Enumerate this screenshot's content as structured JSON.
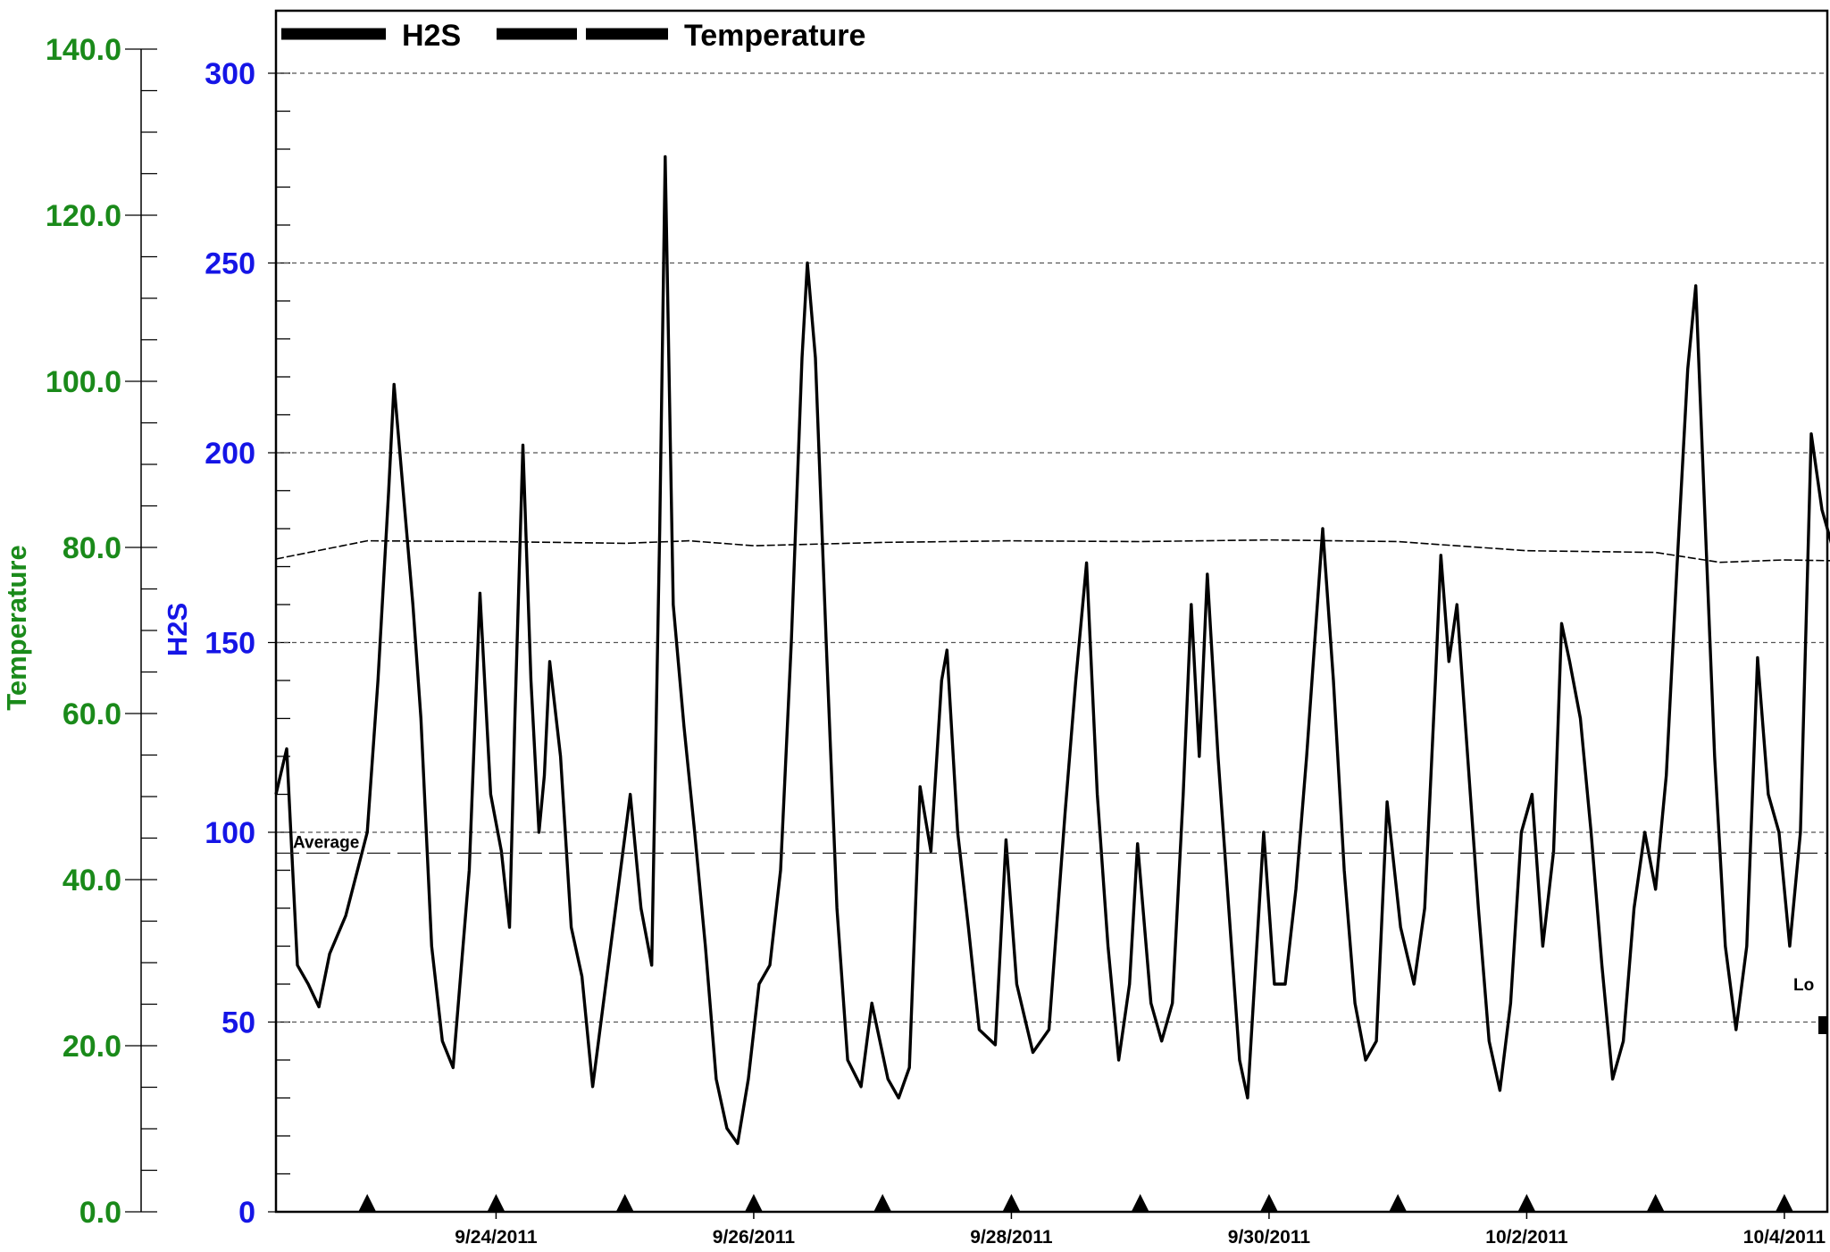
{
  "chart_data": {
    "type": "line",
    "legend": {
      "placement": "top-left",
      "items": [
        "H2S",
        "Temperature"
      ]
    },
    "y_left_outer": {
      "label": "Temperature",
      "ylim": [
        0,
        140
      ],
      "ticks": [
        "0.0",
        "20.0",
        "40.0",
        "60.0",
        "80.0",
        "100.0",
        "120.0",
        "140.0"
      ],
      "tick_values": [
        0,
        20,
        40,
        60,
        80,
        100,
        120,
        140
      ],
      "color": "#1a8a1a"
    },
    "y_left_inner": {
      "label": "H2S",
      "ylim": [
        0,
        300
      ],
      "ticks": [
        "0",
        "50",
        "100",
        "150",
        "200",
        "250",
        "300"
      ],
      "tick_values": [
        0,
        50,
        100,
        150,
        200,
        250,
        300
      ],
      "color": "#1515e6"
    },
    "x_axis": {
      "type": "date",
      "range": [
        "2011-09-22 07:00",
        "2011-10-04 08:00"
      ],
      "tick_labels": [
        "9/24/2011",
        "9/26/2011",
        "9/28/2011",
        "9/30/2011",
        "10/2/2011",
        "10/4/2011"
      ],
      "tick_dates": [
        "2011-09-24",
        "2011-09-26",
        "2011-09-28",
        "2011-09-30",
        "2011-10-02",
        "2011-10-04"
      ],
      "daily_markers": [
        "2011-09-23",
        "2011-09-24",
        "2011-09-25",
        "2011-09-26",
        "2011-09-27",
        "2011-09-28",
        "2011-09-29",
        "2011-09-30",
        "2011-10-01",
        "2011-10-02",
        "2011-10-03",
        "2011-10-04"
      ]
    },
    "grid": {
      "horizontal": true,
      "style": "dashed",
      "values": [
        50,
        100,
        150,
        200,
        250,
        300
      ]
    },
    "annotations": [
      {
        "text": "Average",
        "h2s_value": 94.5
      },
      {
        "text": "Lo",
        "h2s_value": 60
      }
    ],
    "series": [
      {
        "name": "H2S",
        "axis": "H2S",
        "color": "#000000",
        "points": [
          [
            "2011-09-22 07:00",
            110
          ],
          [
            "2011-09-22 09:00",
            122
          ],
          [
            "2011-09-22 11:00",
            65
          ],
          [
            "2011-09-22 13:00",
            60
          ],
          [
            "2011-09-22 15:00",
            54
          ],
          [
            "2011-09-22 17:00",
            68
          ],
          [
            "2011-09-22 20:00",
            78
          ],
          [
            "2011-09-23 00:00",
            100
          ],
          [
            "2011-09-23 02:00",
            140
          ],
          [
            "2011-09-23 04:00",
            190
          ],
          [
            "2011-09-23 05:00",
            218
          ],
          [
            "2011-09-23 07:00",
            185
          ],
          [
            "2011-09-23 08:30",
            160
          ],
          [
            "2011-09-23 10:00",
            130
          ],
          [
            "2011-09-23 12:00",
            70
          ],
          [
            "2011-09-23 14:00",
            45
          ],
          [
            "2011-09-23 16:00",
            38
          ],
          [
            "2011-09-23 19:00",
            90
          ],
          [
            "2011-09-23 21:00",
            163
          ],
          [
            "2011-09-23 23:00",
            110
          ],
          [
            "2011-09-24 01:00",
            95
          ],
          [
            "2011-09-24 02:30",
            75
          ],
          [
            "2011-09-24 03:30",
            130
          ],
          [
            "2011-09-24 05:00",
            202
          ],
          [
            "2011-09-24 06:30",
            140
          ],
          [
            "2011-09-24 08:00",
            100
          ],
          [
            "2011-09-24 09:00",
            115
          ],
          [
            "2011-09-24 10:00",
            145
          ],
          [
            "2011-09-24 12:00",
            120
          ],
          [
            "2011-09-24 14:00",
            75
          ],
          [
            "2011-09-24 16:00",
            62
          ],
          [
            "2011-09-24 18:00",
            33
          ],
          [
            "2011-09-24 20:00",
            55
          ],
          [
            "2011-09-24 23:00",
            88
          ],
          [
            "2011-09-25 01:00",
            110
          ],
          [
            "2011-09-25 03:00",
            80
          ],
          [
            "2011-09-25 05:00",
            65
          ],
          [
            "2011-09-25 06:30",
            180
          ],
          [
            "2011-09-25 07:30",
            278
          ],
          [
            "2011-09-25 09:00",
            160
          ],
          [
            "2011-09-25 11:00",
            128
          ],
          [
            "2011-09-25 13:00",
            100
          ],
          [
            "2011-09-25 15:00",
            70
          ],
          [
            "2011-09-25 17:00",
            35
          ],
          [
            "2011-09-25 19:00",
            22
          ],
          [
            "2011-09-25 21:00",
            18
          ],
          [
            "2011-09-25 23:00",
            35
          ],
          [
            "2011-09-26 01:00",
            60
          ],
          [
            "2011-09-26 03:00",
            65
          ],
          [
            "2011-09-26 05:00",
            90
          ],
          [
            "2011-09-26 07:00",
            150
          ],
          [
            "2011-09-26 09:00",
            225
          ],
          [
            "2011-09-26 10:00",
            250
          ],
          [
            "2011-09-26 11:30",
            225
          ],
          [
            "2011-09-26 13:30",
            150
          ],
          [
            "2011-09-26 15:30",
            80
          ],
          [
            "2011-09-26 17:30",
            40
          ],
          [
            "2011-09-26 20:00",
            33
          ],
          [
            "2011-09-26 22:00",
            55
          ],
          [
            "2011-09-27 01:00",
            35
          ],
          [
            "2011-09-27 03:00",
            30
          ],
          [
            "2011-09-27 05:00",
            38
          ],
          [
            "2011-09-27 07:00",
            112
          ],
          [
            "2011-09-27 09:00",
            95
          ],
          [
            "2011-09-27 11:00",
            140
          ],
          [
            "2011-09-27 12:00",
            148
          ],
          [
            "2011-09-27 14:00",
            100
          ],
          [
            "2011-09-27 16:00",
            75
          ],
          [
            "2011-09-27 18:00",
            48
          ],
          [
            "2011-09-27 21:00",
            44
          ],
          [
            "2011-09-27 23:00",
            98
          ],
          [
            "2011-09-28 01:00",
            60
          ],
          [
            "2011-09-28 04:00",
            42
          ],
          [
            "2011-09-28 07:00",
            48
          ],
          [
            "2011-09-28 10:00",
            105
          ],
          [
            "2011-09-28 12:00",
            140
          ],
          [
            "2011-09-28 14:00",
            171
          ],
          [
            "2011-09-28 16:00",
            110
          ],
          [
            "2011-09-28 18:00",
            70
          ],
          [
            "2011-09-28 20:00",
            40
          ],
          [
            "2011-09-28 22:00",
            60
          ],
          [
            "2011-09-28 23:30",
            97
          ],
          [
            "2011-09-29 02:00",
            55
          ],
          [
            "2011-09-29 04:00",
            45
          ],
          [
            "2011-09-29 06:00",
            55
          ],
          [
            "2011-09-29 08:00",
            110
          ],
          [
            "2011-09-29 09:30",
            160
          ],
          [
            "2011-09-29 11:00",
            120
          ],
          [
            "2011-09-29 12:30",
            168
          ],
          [
            "2011-09-29 14:30",
            120
          ],
          [
            "2011-09-29 16:30",
            80
          ],
          [
            "2011-09-29 18:30",
            40
          ],
          [
            "2011-09-29 20:00",
            30
          ],
          [
            "2011-09-29 21:30",
            65
          ],
          [
            "2011-09-29 23:00",
            100
          ],
          [
            "2011-09-30 01:00",
            60
          ],
          [
            "2011-09-30 03:00",
            60
          ],
          [
            "2011-09-30 05:00",
            85
          ],
          [
            "2011-09-30 07:00",
            120
          ],
          [
            "2011-09-30 08:30",
            150
          ],
          [
            "2011-09-30 10:00",
            180
          ],
          [
            "2011-09-30 12:00",
            140
          ],
          [
            "2011-09-30 14:00",
            90
          ],
          [
            "2011-09-30 16:00",
            55
          ],
          [
            "2011-09-30 18:00",
            40
          ],
          [
            "2011-09-30 20:00",
            45
          ],
          [
            "2011-09-30 22:00",
            108
          ],
          [
            "2011-10-01 00:30",
            75
          ],
          [
            "2011-10-01 03:00",
            60
          ],
          [
            "2011-10-01 05:00",
            80
          ],
          [
            "2011-10-01 07:00",
            140
          ],
          [
            "2011-10-01 08:00",
            173
          ],
          [
            "2011-10-01 09:30",
            145
          ],
          [
            "2011-10-01 11:00",
            160
          ],
          [
            "2011-10-01 13:00",
            120
          ],
          [
            "2011-10-01 15:00",
            80
          ],
          [
            "2011-10-01 17:00",
            45
          ],
          [
            "2011-10-01 19:00",
            32
          ],
          [
            "2011-10-01 21:00",
            55
          ],
          [
            "2011-10-01 23:00",
            100
          ],
          [
            "2011-10-02 01:00",
            110
          ],
          [
            "2011-10-02 03:00",
            70
          ],
          [
            "2011-10-02 05:00",
            95
          ],
          [
            "2011-10-02 06:30",
            155
          ],
          [
            "2011-10-02 08:00",
            145
          ],
          [
            "2011-10-02 10:00",
            130
          ],
          [
            "2011-10-02 12:00",
            100
          ],
          [
            "2011-10-02 14:00",
            65
          ],
          [
            "2011-10-02 16:00",
            35
          ],
          [
            "2011-10-02 18:00",
            45
          ],
          [
            "2011-10-02 20:00",
            80
          ],
          [
            "2011-10-02 22:00",
            100
          ],
          [
            "2011-10-03 00:00",
            85
          ],
          [
            "2011-10-03 02:00",
            115
          ],
          [
            "2011-10-03 04:00",
            170
          ],
          [
            "2011-10-03 06:00",
            222
          ],
          [
            "2011-10-03 07:30",
            244
          ],
          [
            "2011-10-03 09:00",
            190
          ],
          [
            "2011-10-03 11:00",
            120
          ],
          [
            "2011-10-03 13:00",
            70
          ],
          [
            "2011-10-03 15:00",
            48
          ],
          [
            "2011-10-03 17:00",
            70
          ],
          [
            "2011-10-03 19:00",
            146
          ],
          [
            "2011-10-03 21:00",
            110
          ],
          [
            "2011-10-03 23:00",
            100
          ],
          [
            "2011-10-04 01:00",
            70
          ],
          [
            "2011-10-04 03:00",
            100
          ],
          [
            "2011-10-04 05:00",
            205
          ],
          [
            "2011-10-04 07:00",
            185
          ],
          [
            "2011-10-04 09:00",
            175
          ],
          [
            "2011-10-04 11:00",
            135
          ],
          [
            "2011-10-04 13:00",
            95
          ],
          [
            "2011-10-04 15:00",
            58
          ],
          [
            "2011-10-04 16:00",
            50
          ],
          [
            "2011-10-04 17:00",
            75
          ],
          [
            "2011-10-04 18:00",
            102
          ]
        ]
      },
      {
        "name": "Temperature",
        "axis": "Temperature",
        "color": "#000000",
        "style": "dashed",
        "points": [
          [
            "2011-09-22 07:00",
            78.6
          ],
          [
            "2011-09-23 00:00",
            80.8
          ],
          [
            "2011-09-24 00:00",
            80.7
          ],
          [
            "2011-09-25 00:00",
            80.5
          ],
          [
            "2011-09-25 12:00",
            80.8
          ],
          [
            "2011-09-26 00:00",
            80.2
          ],
          [
            "2011-09-27 00:00",
            80.6
          ],
          [
            "2011-09-28 00:00",
            80.8
          ],
          [
            "2011-09-29 00:00",
            80.7
          ],
          [
            "2011-09-30 00:00",
            80.9
          ],
          [
            "2011-10-01 00:00",
            80.7
          ],
          [
            "2011-10-02 00:00",
            79.6
          ],
          [
            "2011-10-03 00:00",
            79.4
          ],
          [
            "2011-10-03 12:00",
            78.2
          ],
          [
            "2011-10-04 00:00",
            78.5
          ],
          [
            "2011-10-04 18:00",
            78.3
          ]
        ]
      }
    ]
  }
}
